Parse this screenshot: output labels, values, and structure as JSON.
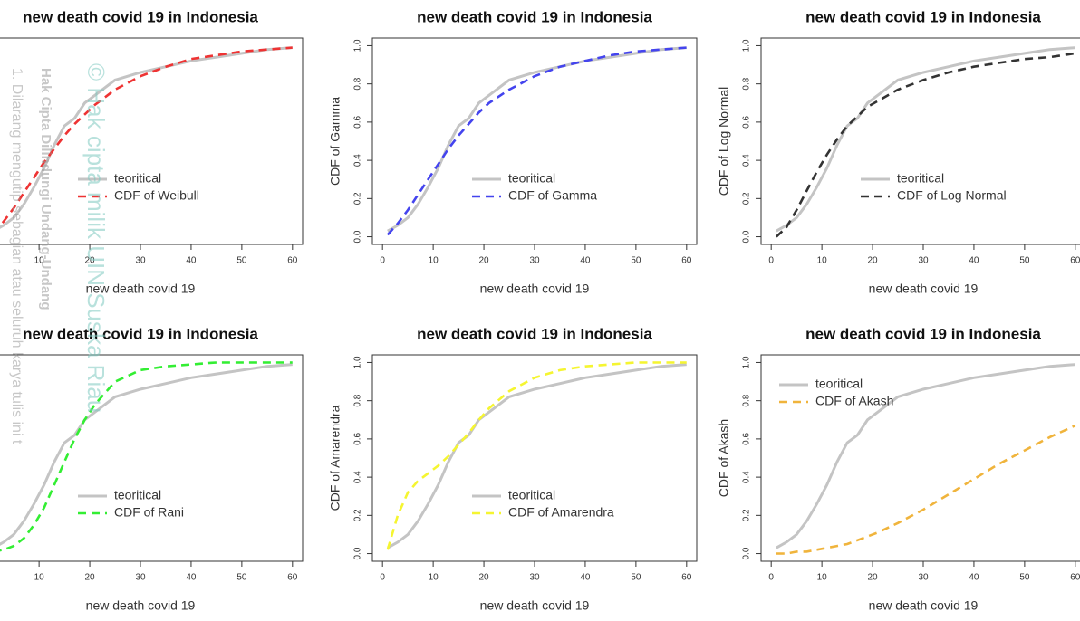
{
  "chart_data": [
    {
      "type": "line",
      "title": "new death covid 19 in Indonesia",
      "xlabel": "new death covid 19",
      "x": [
        1,
        3,
        5,
        7,
        9,
        11,
        13,
        15,
        17,
        19,
        21,
        25,
        30,
        35,
        40,
        45,
        50,
        55,
        60
      ],
      "series": [
        {
          "name": "teoritical",
          "color": "#c4c4c4",
          "values": [
            0.03,
            0.06,
            0.1,
            0.17,
            0.26,
            0.36,
            0.48,
            0.58,
            0.62,
            0.7,
            0.74,
            0.82,
            0.86,
            0.89,
            0.92,
            0.94,
            0.96,
            0.98,
            0.99
          ]
        },
        {
          "name": "CDF of Weibull",
          "color": "#ee3333",
          "values": [
            0.02,
            0.08,
            0.15,
            0.23,
            0.31,
            0.39,
            0.46,
            0.53,
            0.59,
            0.64,
            0.69,
            0.77,
            0.84,
            0.89,
            0.93,
            0.95,
            0.97,
            0.98,
            0.99
          ]
        }
      ],
      "xlim": [
        -2,
        62
      ],
      "ylim": [
        -0.04,
        1.04
      ],
      "xticks": [
        10,
        20,
        30,
        40,
        50,
        60
      ],
      "legend": "center"
    },
    {
      "type": "line",
      "title": "new death covid 19 in Indonesia",
      "xlabel": "new death covid 19",
      "ylabel": "CDF of Gamma",
      "x": [
        1,
        3,
        5,
        7,
        9,
        11,
        13,
        15,
        17,
        19,
        21,
        25,
        30,
        35,
        40,
        45,
        50,
        55,
        60
      ],
      "series": [
        {
          "name": "teoritical",
          "color": "#c4c4c4",
          "values": [
            0.03,
            0.06,
            0.1,
            0.17,
            0.26,
            0.36,
            0.48,
            0.58,
            0.62,
            0.7,
            0.74,
            0.82,
            0.86,
            0.89,
            0.92,
            0.94,
            0.96,
            0.98,
            0.99
          ]
        },
        {
          "name": "CDF of Gamma",
          "color": "#4444ee",
          "values": [
            0.01,
            0.07,
            0.14,
            0.22,
            0.3,
            0.38,
            0.46,
            0.53,
            0.59,
            0.65,
            0.7,
            0.77,
            0.84,
            0.89,
            0.92,
            0.95,
            0.97,
            0.98,
            0.99
          ]
        }
      ],
      "xlim": [
        -2,
        62
      ],
      "ylim": [
        -0.04,
        1.04
      ],
      "xticks": [
        0,
        10,
        20,
        30,
        40,
        50,
        60
      ],
      "yticks": [
        {
          "value": 0,
          "label": "0.0"
        },
        0.2,
        0.4,
        0.6,
        0.8,
        {
          "value": 1,
          "label": "1.0"
        }
      ],
      "legend": "center"
    },
    {
      "type": "line",
      "title": "new death covid 19 in Indonesia",
      "xlabel": "new death covid 19",
      "ylabel": "CDF of Log Normal",
      "x": [
        1,
        3,
        5,
        7,
        9,
        11,
        13,
        15,
        17,
        19,
        21,
        25,
        30,
        35,
        40,
        45,
        50,
        55,
        60
      ],
      "series": [
        {
          "name": "teoritical",
          "color": "#c4c4c4",
          "values": [
            0.03,
            0.06,
            0.1,
            0.17,
            0.26,
            0.36,
            0.48,
            0.58,
            0.62,
            0.7,
            0.74,
            0.82,
            0.86,
            0.89,
            0.92,
            0.94,
            0.96,
            0.98,
            0.99
          ]
        },
        {
          "name": "CDF of Log Normal",
          "color": "#333333",
          "values": [
            0,
            0.05,
            0.14,
            0.24,
            0.34,
            0.43,
            0.51,
            0.58,
            0.63,
            0.68,
            0.71,
            0.77,
            0.82,
            0.86,
            0.89,
            0.91,
            0.93,
            0.94,
            0.96
          ]
        }
      ],
      "xlim": [
        -2,
        62
      ],
      "ylim": [
        -0.04,
        1.04
      ],
      "xticks": [
        0,
        10,
        20,
        30,
        40,
        50,
        60
      ],
      "yticks": [
        {
          "value": 0,
          "label": "0.0"
        },
        0.2,
        0.4,
        0.6,
        0.8,
        {
          "value": 1,
          "label": "1.0"
        }
      ],
      "legend": "center"
    },
    {
      "type": "line",
      "title": "new death covid 19 in Indonesia",
      "xlabel": "new death covid 19",
      "x": [
        1,
        3,
        5,
        7,
        9,
        11,
        13,
        15,
        17,
        19,
        21,
        25,
        30,
        35,
        40,
        45,
        50,
        55,
        60
      ],
      "series": [
        {
          "name": "teoritical",
          "color": "#c4c4c4",
          "values": [
            0.03,
            0.06,
            0.1,
            0.17,
            0.26,
            0.36,
            0.48,
            0.58,
            0.62,
            0.7,
            0.74,
            0.82,
            0.86,
            0.89,
            0.92,
            0.94,
            0.96,
            0.98,
            0.99
          ]
        },
        {
          "name": "CDF of Rani",
          "color": "#33ee33",
          "values": [
            0.01,
            0.02,
            0.04,
            0.08,
            0.15,
            0.24,
            0.36,
            0.48,
            0.6,
            0.7,
            0.78,
            0.9,
            0.96,
            0.98,
            0.99,
            1,
            1,
            1,
            1
          ]
        }
      ],
      "xlim": [
        -2,
        62
      ],
      "ylim": [
        -0.04,
        1.04
      ],
      "xticks": [
        10,
        20,
        30,
        40,
        50,
        60
      ],
      "legend": "center"
    },
    {
      "type": "line",
      "title": "new death covid 19 in Indonesia",
      "xlabel": "new death covid 19",
      "ylabel": "CDF of Amarendra",
      "x": [
        1,
        3,
        5,
        7,
        9,
        11,
        13,
        15,
        17,
        19,
        21,
        25,
        30,
        35,
        40,
        45,
        50,
        55,
        60
      ],
      "series": [
        {
          "name": "teoritical",
          "color": "#c4c4c4",
          "values": [
            0.03,
            0.06,
            0.1,
            0.17,
            0.26,
            0.36,
            0.48,
            0.58,
            0.62,
            0.7,
            0.74,
            0.82,
            0.86,
            0.89,
            0.92,
            0.94,
            0.96,
            0.98,
            0.99
          ]
        },
        {
          "name": "CDF of Amarendra",
          "color": "#f5f531",
          "values": [
            0.02,
            0.2,
            0.32,
            0.38,
            0.42,
            0.46,
            0.51,
            0.57,
            0.63,
            0.7,
            0.76,
            0.85,
            0.92,
            0.96,
            0.98,
            0.99,
            1,
            1,
            1
          ]
        }
      ],
      "xlim": [
        -2,
        62
      ],
      "ylim": [
        -0.04,
        1.04
      ],
      "xticks": [
        0,
        10,
        20,
        30,
        40,
        50,
        60
      ],
      "yticks": [
        {
          "value": 0,
          "label": "0.0"
        },
        0.2,
        0.4,
        0.6,
        0.8,
        {
          "value": 1,
          "label": "1.0"
        }
      ],
      "legend": "center"
    },
    {
      "type": "line",
      "title": "new death covid 19 in Indonesia",
      "xlabel": "new death covid 19",
      "ylabel": "CDF of Akash",
      "x": [
        1,
        3,
        5,
        7,
        9,
        11,
        13,
        15,
        17,
        19,
        21,
        25,
        30,
        35,
        40,
        45,
        50,
        55,
        60
      ],
      "series": [
        {
          "name": "teoritical",
          "color": "#c4c4c4",
          "values": [
            0.03,
            0.06,
            0.1,
            0.17,
            0.26,
            0.36,
            0.48,
            0.58,
            0.62,
            0.7,
            0.74,
            0.82,
            0.86,
            0.89,
            0.92,
            0.94,
            0.96,
            0.98,
            0.99
          ]
        },
        {
          "name": "CDF of Akash",
          "color": "#f0b43c",
          "values": [
            0,
            0,
            0.01,
            0.01,
            0.02,
            0.03,
            0.04,
            0.05,
            0.07,
            0.09,
            0.11,
            0.16,
            0.23,
            0.31,
            0.39,
            0.47,
            0.54,
            0.61,
            0.67
          ]
        }
      ],
      "xlim": [
        -2,
        62
      ],
      "ylim": [
        -0.04,
        1.04
      ],
      "xticks": [
        0,
        10,
        20,
        30,
        40,
        50,
        60
      ],
      "yticks": [
        {
          "value": 0,
          "label": "0.0"
        },
        0.2,
        0.4,
        0.6,
        0.8,
        {
          "value": 1,
          "label": "1.0"
        }
      ],
      "legend": "top-left"
    }
  ],
  "watermark": [
    "1. Dilarang mengutip sebagian atau seluruh karya tulis ini t",
    "Hak Cipta Dilindungi Undang-Undang",
    "© Hak cipta milik UIN Suska Riau"
  ]
}
